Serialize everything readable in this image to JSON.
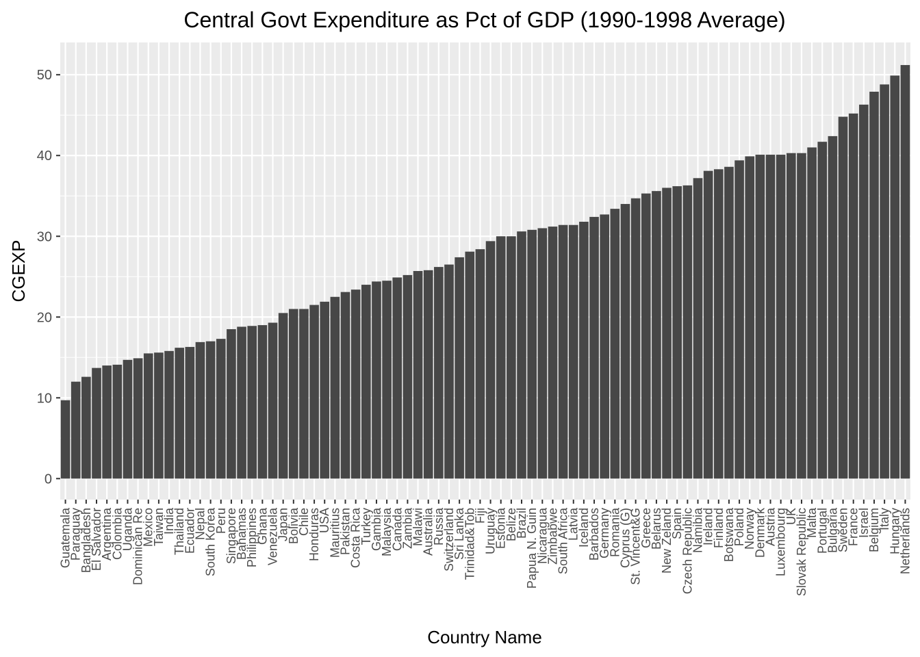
{
  "chart_data": {
    "type": "bar",
    "title": "Central Govt Expenditure as Pct of GDP (1990-1998 Average)",
    "xlabel": "Country Name",
    "ylabel": "CGEXP",
    "ylim": [
      -2.6,
      54
    ],
    "yticks": [
      0,
      10,
      20,
      30,
      40,
      50
    ],
    "grid": true,
    "bar_color": "#474747",
    "panel_color": "#ebebeb",
    "categories": [
      "Guatemala",
      "Paraguay",
      "Bangladesh",
      "El Salvador",
      "Argentina",
      "Colombia",
      "Uganda",
      "Dominican Re",
      "Mexico",
      "Taiwan",
      "India",
      "Thailand",
      "Ecuador",
      "Nepal",
      "South Korea",
      "Peru",
      "Singapore",
      "Bahamas",
      "Philippines",
      "Ghana",
      "Venezuela",
      "Japan",
      "Bolivia",
      "Chile",
      "Honduras",
      "USA",
      "Mauritius",
      "Pakistan",
      "Costa Rica",
      "Turkey",
      "Gambia",
      "Malaysia",
      "Canada",
      "Zambia",
      "Malawi",
      "Australia",
      "Russia",
      "Switzerland",
      "Sri Lanka",
      "Trinidad&Tob",
      "Fiji",
      "Uruguay",
      "Estonia",
      "Belize",
      "Brazil",
      "Papua N. Guin",
      "Nicaragua",
      "Zimbabwe",
      "South Africa",
      "Latvia",
      "Iceland",
      "Barbados",
      "Germany",
      "Romania",
      "Cyprus (G)",
      "St. Vincent&G",
      "Greece",
      "Belarus",
      "New Zeland",
      "Spain",
      "Czech Republic",
      "Namibia",
      "Ireland",
      "Finland",
      "Botswana",
      "Poland",
      "Norway",
      "Denmark",
      "Austria",
      "Luxembourg",
      "UK",
      "Slovak Republic",
      "Malta",
      "Portugal",
      "Bulgaria",
      "Sweden",
      "France",
      "Israel",
      "Belgium",
      "Italy",
      "Hungary",
      "Netherlands"
    ],
    "values": [
      9.7,
      12.0,
      12.6,
      13.7,
      14.0,
      14.1,
      14.7,
      14.9,
      15.5,
      15.6,
      15.8,
      16.2,
      16.3,
      16.9,
      17.0,
      17.3,
      18.5,
      18.8,
      18.9,
      19.0,
      19.3,
      20.5,
      21.0,
      21.0,
      21.5,
      21.9,
      22.5,
      23.1,
      23.4,
      24.0,
      24.4,
      24.5,
      24.9,
      25.2,
      25.7,
      25.8,
      26.2,
      26.5,
      27.4,
      28.1,
      28.4,
      29.4,
      30.0,
      30.0,
      30.6,
      30.8,
      31.0,
      31.2,
      31.4,
      31.4,
      31.8,
      32.4,
      32.7,
      33.4,
      34.0,
      34.7,
      35.3,
      35.6,
      36.0,
      36.2,
      36.3,
      37.2,
      38.1,
      38.3,
      38.6,
      39.4,
      39.9,
      40.1,
      40.1,
      40.1,
      40.3,
      40.3,
      41.0,
      41.7,
      42.4,
      44.8,
      45.2,
      46.3,
      47.9,
      48.8,
      49.9,
      51.2
    ]
  }
}
